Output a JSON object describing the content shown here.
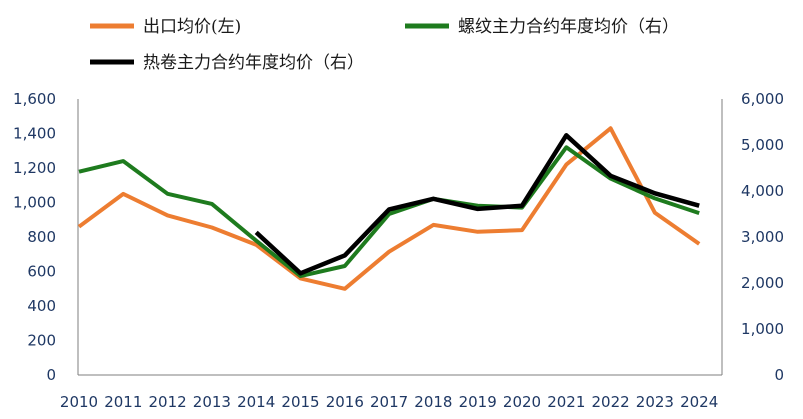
{
  "chart_data": {
    "type": "line",
    "title": "",
    "xlabel": "",
    "ylabel": "",
    "categories": [
      "2010",
      "2011",
      "2012",
      "2013",
      "2014",
      "2015",
      "2016",
      "2017",
      "2018",
      "2019",
      "2020",
      "2021",
      "2022",
      "2023",
      "2024"
    ],
    "y_left": {
      "range": [
        0,
        1600
      ],
      "ticks": [
        0,
        200,
        400,
        600,
        800,
        1000,
        1200,
        1400,
        1600
      ],
      "tick_labels": [
        "0",
        "200",
        "400",
        "600",
        "800",
        "1,000",
        "1,200",
        "1,400",
        "1,600"
      ]
    },
    "y_right": {
      "range": [
        0,
        6000
      ],
      "ticks": [
        0,
        1000,
        2000,
        3000,
        4000,
        5000,
        6000
      ],
      "tick_labels": [
        "0",
        "1,000",
        "2,000",
        "3,000",
        "4,000",
        "5,000",
        "6,000"
      ]
    },
    "grid": false,
    "legend_position": "top",
    "series": [
      {
        "name": "出口均价(左)",
        "axis": "left",
        "color": "#ED7D31",
        "values": [
          860,
          1050,
          925,
          855,
          755,
          560,
          500,
          715,
          870,
          830,
          840,
          1220,
          1430,
          940,
          760
        ]
      },
      {
        "name": "螺纹主力合约年度均价（右）",
        "axis": "right",
        "color": "#1E7B1E",
        "values": [
          4420,
          4650,
          3940,
          3720,
          2920,
          2150,
          2370,
          3500,
          3830,
          3680,
          3640,
          4950,
          4270,
          3840,
          3520
        ]
      },
      {
        "name": "热卷主力合约年度均价（右）",
        "axis": "right",
        "color": "#000000",
        "values": [
          null,
          null,
          null,
          null,
          3100,
          2210,
          2600,
          3600,
          3830,
          3610,
          3680,
          5210,
          4330,
          3950,
          3680
        ]
      }
    ]
  }
}
